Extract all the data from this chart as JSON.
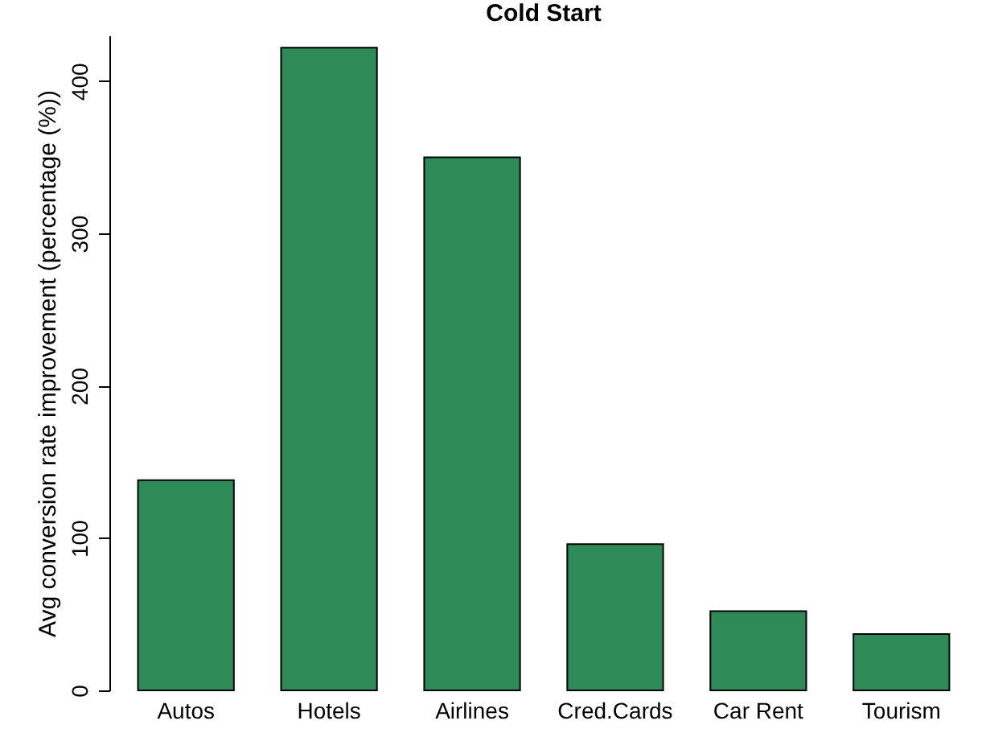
{
  "chart_data": {
    "type": "bar",
    "title": "Cold Start",
    "ylabel": "Avg conversion rate improvement (percentage (%))",
    "categories": [
      "Autos",
      "Hotels",
      "Airlines",
      "Cred.Cards",
      "Car Rent",
      "Tourism"
    ],
    "values": [
      138,
      422,
      350,
      96,
      52,
      37
    ],
    "color": "#2e8b57",
    "ylim": [
      0,
      430
    ],
    "yticks": [
      0,
      100,
      200,
      300,
      400
    ],
    "grid": false
  }
}
